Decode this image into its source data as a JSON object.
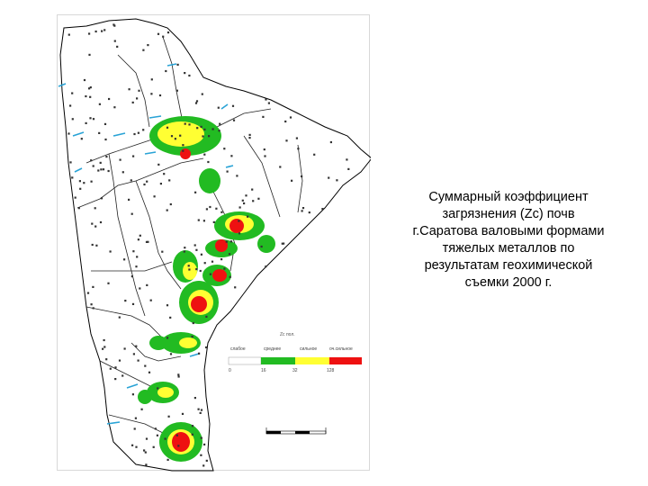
{
  "caption": {
    "lines": [
      "Суммарный коэффициент",
      "загрязнения (Zc) почв",
      "г.Саратова валовыми формами",
      "тяжелых металлов по",
      "результатам геохимической",
      "съемки 2000 г."
    ]
  },
  "legend": {
    "title": "Zc пол.",
    "categories": [
      "слабое",
      "среднее",
      "сильное",
      "оч.сильное"
    ],
    "thresholds": [
      "0",
      "16",
      "32",
      "128"
    ],
    "colors": [
      "#ffffff",
      "#22bb22",
      "#ffff33",
      "#ee1111"
    ]
  },
  "map": {
    "outline_color": "#000000",
    "water_color": "#29a3d6"
  }
}
